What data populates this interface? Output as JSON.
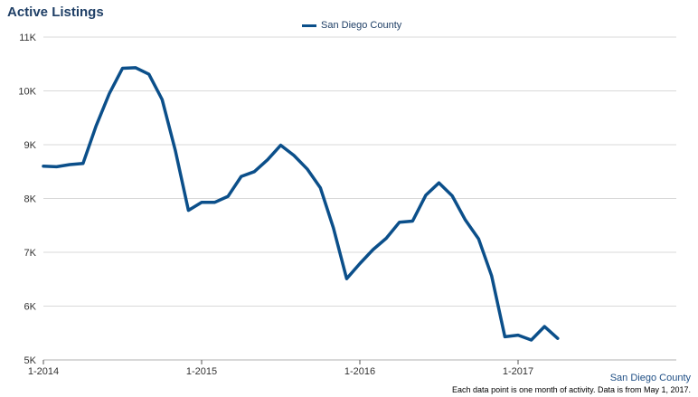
{
  "chart_data": {
    "type": "line",
    "title": "Active Listings",
    "xlabel": "",
    "ylabel": "",
    "ylim": [
      5000,
      11000
    ],
    "y_ticks": [
      5000,
      6000,
      7000,
      8000,
      9000,
      10000,
      11000
    ],
    "y_tick_labels": [
      "5K",
      "6K",
      "7K",
      "8K",
      "9K",
      "10K",
      "11K"
    ],
    "x_tick_labels": [
      "1-2014",
      "1-2015",
      "1-2016",
      "1-2017"
    ],
    "x_tick_months": [
      0,
      12,
      24,
      36
    ],
    "grid": true,
    "legend_position": "top-center",
    "series": [
      {
        "name": "San Diego County",
        "color": "#0b4f8a",
        "x": [
          "2014-01",
          "2014-02",
          "2014-03",
          "2014-04",
          "2014-05",
          "2014-06",
          "2014-07",
          "2014-08",
          "2014-09",
          "2014-10",
          "2014-11",
          "2014-12",
          "2015-01",
          "2015-02",
          "2015-03",
          "2015-04",
          "2015-05",
          "2015-06",
          "2015-07",
          "2015-08",
          "2015-09",
          "2015-10",
          "2015-11",
          "2015-12",
          "2016-01",
          "2016-02",
          "2016-03",
          "2016-04",
          "2016-05",
          "2016-06",
          "2016-07",
          "2016-08",
          "2016-09",
          "2016-10",
          "2016-11",
          "2016-12",
          "2017-01",
          "2017-02",
          "2017-03",
          "2017-04"
        ],
        "values": [
          8600,
          8590,
          8630,
          8650,
          9350,
          9950,
          10420,
          10430,
          10310,
          9840,
          8900,
          7780,
          7930,
          7930,
          8040,
          8410,
          8500,
          8720,
          8990,
          8800,
          8550,
          8200,
          7450,
          6510,
          6790,
          7050,
          7260,
          7560,
          7580,
          8060,
          8290,
          8050,
          7600,
          7250,
          6560,
          5430,
          5460,
          5370,
          5620,
          5400
        ]
      }
    ]
  },
  "labels": {
    "source": "San Diego County",
    "footnote": "Each data point is one month of activity. Data is from May 1, 2017."
  }
}
